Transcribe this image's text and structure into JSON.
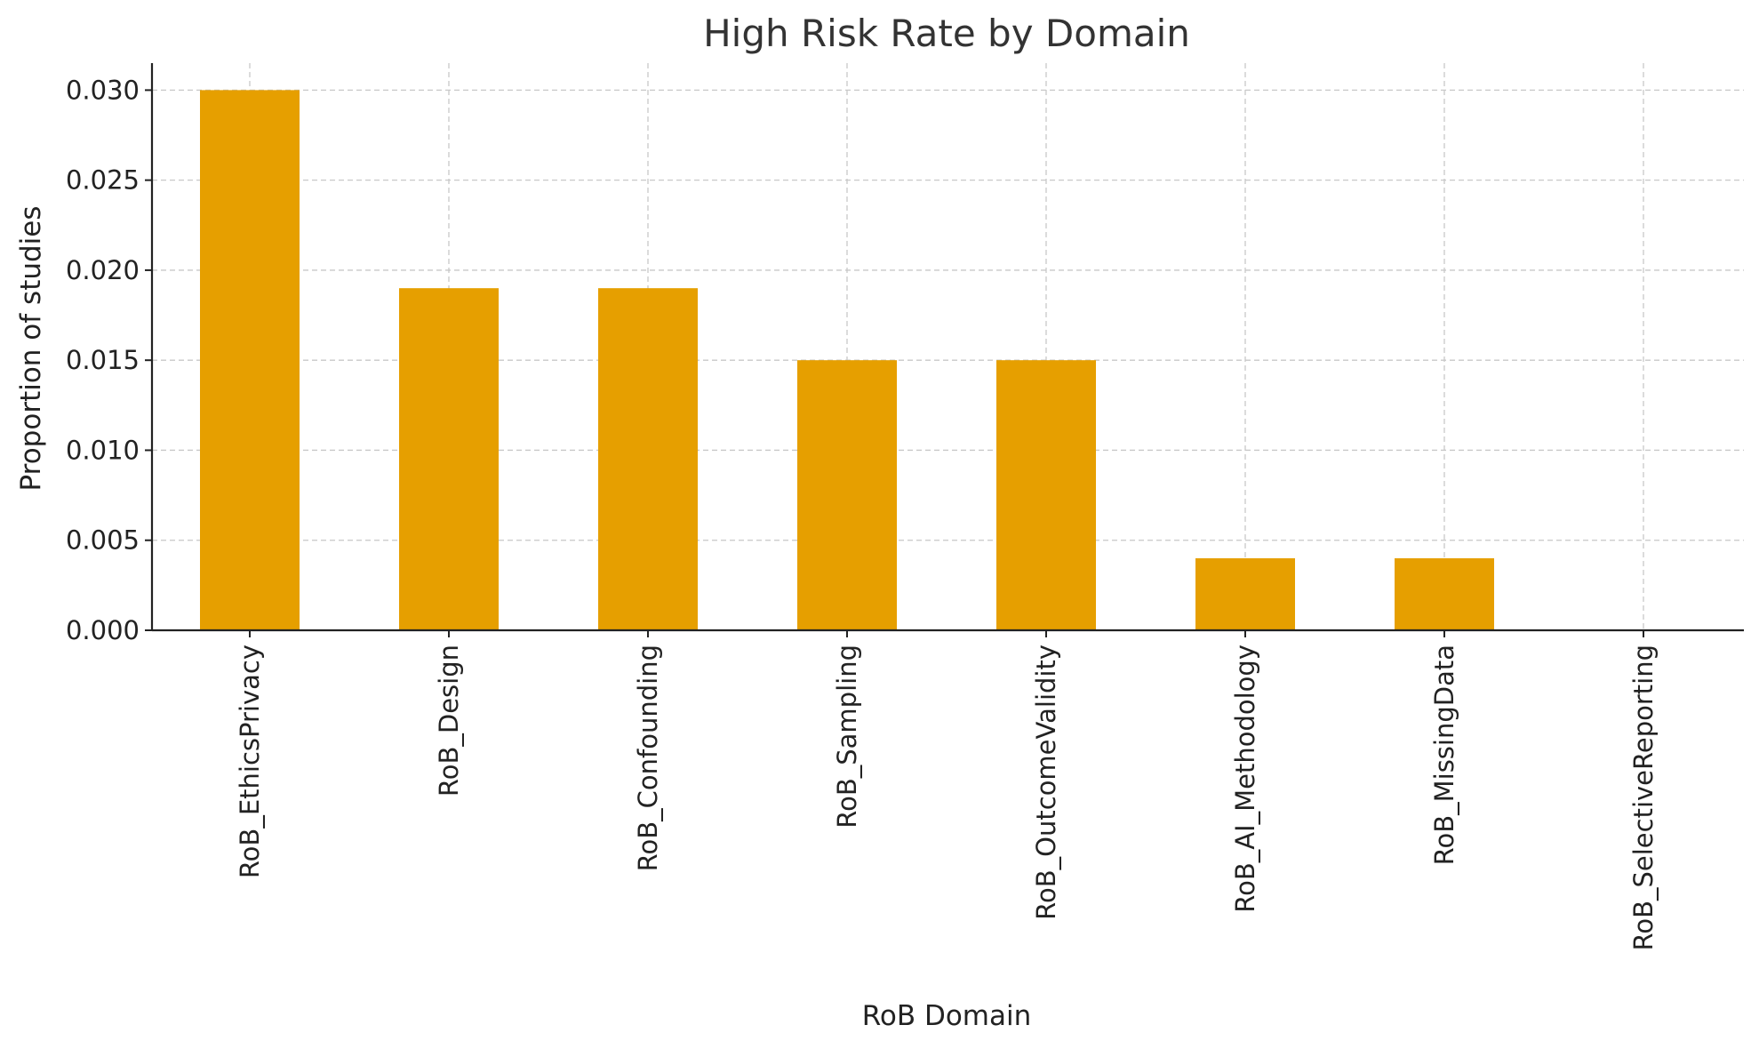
{
  "chart_data": {
    "type": "bar",
    "title": "High Risk Rate by Domain",
    "xlabel": "RoB Domain",
    "ylabel": "Proportion of studies",
    "categories": [
      "RoB_EthicsPrivacy",
      "RoB_Design",
      "RoB_Confounding",
      "RoB_Sampling",
      "RoB_OutcomeValidity",
      "RoB_AI_Methodology",
      "RoB_MissingData",
      "RoB_SelectiveReporting"
    ],
    "values": [
      0.03,
      0.019,
      0.019,
      0.015,
      0.015,
      0.004,
      0.004,
      0.0
    ],
    "ylim": [
      0,
      0.0315
    ],
    "yticks": [
      "0.000",
      "0.005",
      "0.010",
      "0.015",
      "0.020",
      "0.025",
      "0.030"
    ],
    "grid": true,
    "bar_color": "#E69F00"
  }
}
